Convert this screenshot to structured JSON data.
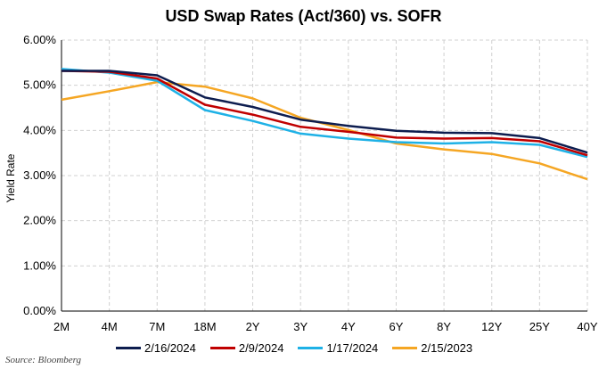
{
  "chart_data": {
    "type": "line",
    "title": "USD Swap Rates (Act/360) vs. SOFR",
    "ylabel": "Yield Rate",
    "xlabel": "",
    "categories": [
      "2M",
      "4M",
      "7M",
      "18M",
      "2Y",
      "3Y",
      "4Y",
      "6Y",
      "8Y",
      "12Y",
      "25Y",
      "40Y"
    ],
    "ylim": [
      0,
      6
    ],
    "yticks": [
      "0.00%",
      "1.00%",
      "2.00%",
      "3.00%",
      "4.00%",
      "5.00%",
      "6.00%"
    ],
    "grid": true,
    "legend_position": "bottom",
    "series": [
      {
        "name": "2/16/2024",
        "color": "#0d1d4f",
        "values": [
          5.32,
          5.32,
          5.22,
          4.73,
          4.52,
          4.24,
          4.1,
          3.99,
          3.95,
          3.94,
          3.83,
          3.51
        ]
      },
      {
        "name": "2/9/2024",
        "color": "#c00000",
        "values": [
          5.32,
          5.3,
          5.15,
          4.57,
          4.35,
          4.08,
          3.97,
          3.84,
          3.82,
          3.83,
          3.76,
          3.45
        ]
      },
      {
        "name": "1/17/2024",
        "color": "#1eb1e6",
        "values": [
          5.36,
          5.28,
          5.1,
          4.45,
          4.21,
          3.93,
          3.82,
          3.74,
          3.71,
          3.74,
          3.68,
          3.41
        ]
      },
      {
        "name": "2/15/2023",
        "color": "#f5a623",
        "values": [
          4.68,
          4.87,
          5.07,
          4.97,
          4.71,
          4.28,
          4.01,
          3.71,
          3.58,
          3.48,
          3.27,
          2.92
        ]
      }
    ]
  },
  "source": "Source: Bloomberg"
}
